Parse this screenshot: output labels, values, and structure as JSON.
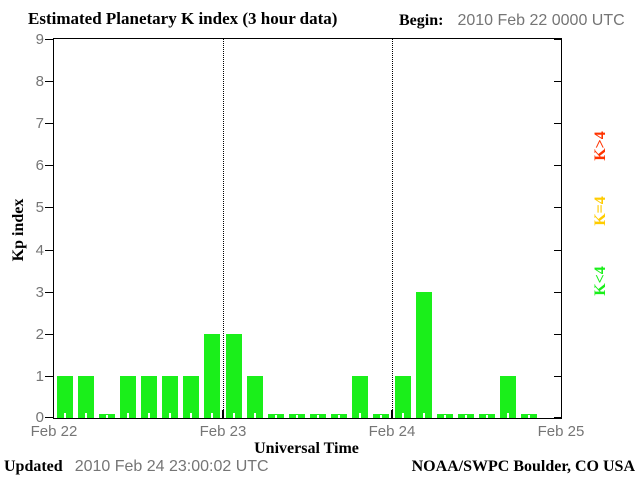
{
  "header": {
    "title": "Estimated Planetary K index (3 hour data)",
    "begin_label": "Begin:",
    "begin_value": "2010 Feb 22 0000 UTC"
  },
  "footer": {
    "updated_label": "Updated",
    "updated_value": "2010 Feb 24 23:00:02 UTC",
    "credit": "NOAA/SWPC Boulder, CO USA"
  },
  "chart_data": {
    "type": "bar",
    "title": "Estimated Planetary K index (3 hour data)",
    "xlabel": "Universal Time",
    "ylabel": "Kp index",
    "ylim": [
      0,
      9
    ],
    "yticks": [
      0,
      1,
      2,
      3,
      4,
      5,
      6,
      7,
      8,
      9
    ],
    "x_day_labels": [
      "Feb 22",
      "Feb 23",
      "Feb 24",
      "Feb 25"
    ],
    "bars_per_day": 8,
    "bar_interval_hours": 3,
    "grid": "vertical dotted lines at day boundaries",
    "series": [
      {
        "day": "Feb 22",
        "values": [
          1,
          1,
          0,
          1,
          1,
          1,
          1,
          2
        ]
      },
      {
        "day": "Feb 23",
        "values": [
          2,
          1,
          0,
          0,
          0,
          0,
          1,
          0
        ]
      },
      {
        "day": "Feb 24",
        "values": [
          1,
          3,
          0,
          0,
          0,
          1,
          0,
          null
        ]
      }
    ],
    "legend": [
      {
        "label": "K>4",
        "color": "#ff3300"
      },
      {
        "label": "K=4",
        "color": "#ffcc00"
      },
      {
        "label": "K<4",
        "color": "#1aef1a"
      }
    ],
    "legend_position": "right margin, rotated 90deg",
    "bar_color": "#1aef1a",
    "axis_color": "#000000",
    "tick_label_color": "#757575"
  }
}
